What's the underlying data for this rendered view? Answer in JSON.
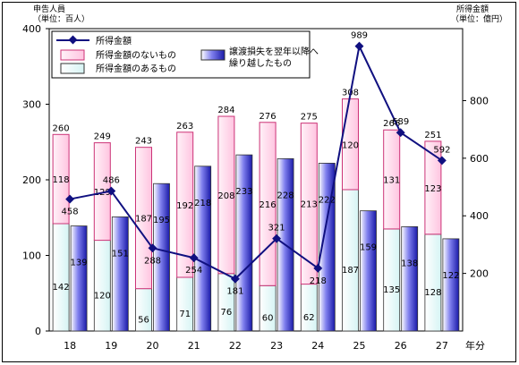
{
  "chart_data": {
    "type": "bar",
    "left_axis_title": [
      "申告人員",
      "（単位：百人）"
    ],
    "right_axis_title": [
      "所得金額",
      "（単位：億円）"
    ],
    "xlabel": "年分",
    "categories": [
      "18",
      "19",
      "20",
      "21",
      "22",
      "23",
      "24",
      "25",
      "26",
      "27"
    ],
    "left_ticks": [
      "0",
      "100",
      "200",
      "300",
      "400"
    ],
    "right_ticks": [
      "200",
      "400",
      "600",
      "800"
    ],
    "ylim_left": [
      0,
      400
    ],
    "ylim_right": [
      0,
      1050
    ],
    "colors": {
      "stack_lower": "#e8f8f8",
      "stack_upper": "#ffd0e8",
      "stack_border": "#cc3377",
      "separate": "#5050dd",
      "line": "#101080"
    },
    "series": [
      {
        "name": "所得金額のあるもの",
        "stack": "A",
        "values": [
          142,
          120,
          56,
          71,
          76,
          60,
          62,
          187,
          135,
          128
        ],
        "labels": [
          "142",
          "120",
          "56",
          "71",
          "76",
          "60",
          "62",
          "187",
          "135",
          "128"
        ]
      },
      {
        "name": "所得金額のないもの",
        "stack": "A",
        "values": [
          118,
          129,
          187,
          192,
          208,
          216,
          213,
          120,
          131,
          123
        ],
        "labels": [
          "118",
          "129",
          "187",
          "192",
          "208",
          "216",
          "213",
          "120",
          "131",
          "123"
        ]
      },
      {
        "name": "譲渡損失を翌年以降へ繰り越したもの",
        "values": [
          139,
          151,
          195,
          218,
          233,
          228,
          222,
          159,
          138,
          122
        ],
        "labels": [
          "139",
          "151",
          "195",
          "218",
          "233",
          "228",
          "222",
          "159",
          "138",
          "122"
        ]
      },
      {
        "name": "所得金額",
        "type": "line",
        "axis": "right",
        "values": [
          458,
          486,
          288,
          254,
          181,
          321,
          218,
          989,
          689,
          592
        ],
        "labels": [
          "458",
          "486",
          "288",
          "254",
          "181",
          "321",
          "218",
          "989",
          "689",
          "592"
        ]
      }
    ],
    "stack_totals": [
      "260",
      "249",
      "243",
      "263",
      "284",
      "276",
      "275",
      "308",
      "266",
      "251"
    ],
    "legend": {
      "line": "所得金額",
      "pink": "所得金額のないもの",
      "cyan": "所得金額のあるもの",
      "blue": [
        "譲渡損失を翌年以降へ",
        "繰り越したもの"
      ]
    }
  }
}
